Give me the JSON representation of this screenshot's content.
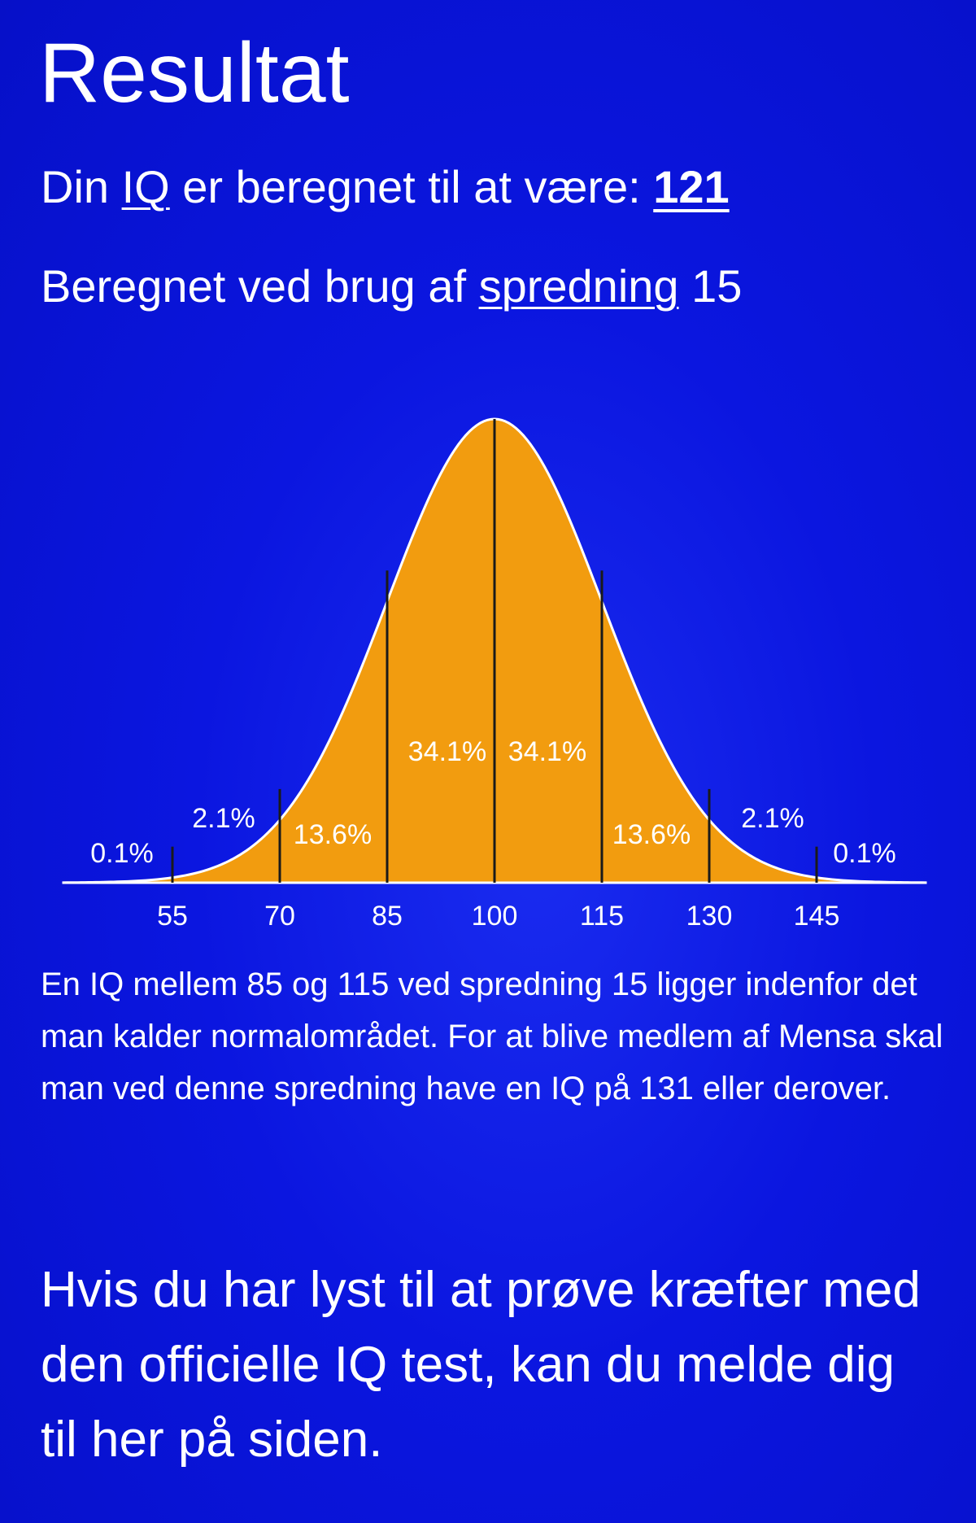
{
  "header": {
    "title": "Resultat"
  },
  "result": {
    "prefix": "Din",
    "iq_link": "IQ",
    "middle": "er beregnet til at være:",
    "score": "121"
  },
  "spread": {
    "prefix": "Beregnet ved brug af",
    "link": "spredning",
    "value": "15"
  },
  "colors": {
    "background": "#0b16e0",
    "curve_fill": "#f29c0f",
    "curve_outline": "#ffffff",
    "divider_lines": "#1a1a1a",
    "label_text": "#ffffff"
  },
  "chart_data": {
    "type": "area",
    "title": "",
    "xlabel": "",
    "ylabel": "",
    "mean": 100,
    "sd": 15,
    "x_ticks": [
      "55",
      "70",
      "85",
      "100",
      "115",
      "130",
      "145"
    ],
    "x_tick_values": [
      55,
      70,
      85,
      100,
      115,
      130,
      145
    ],
    "xlim": [
      40,
      160
    ],
    "dividers": [
      55,
      70,
      85,
      100,
      115,
      130,
      145
    ],
    "region_labels": [
      {
        "label": "0.1%",
        "from": 40,
        "to": 55
      },
      {
        "label": "2.1%",
        "from": 55,
        "to": 70
      },
      {
        "label": "13.6%",
        "from": 70,
        "to": 85
      },
      {
        "label": "34.1%",
        "from": 85,
        "to": 100
      },
      {
        "label": "34.1%",
        "from": 100,
        "to": 115
      },
      {
        "label": "13.6%",
        "from": 115,
        "to": 130
      },
      {
        "label": "2.1%",
        "from": 130,
        "to": 145
      },
      {
        "label": "0.1%",
        "from": 145,
        "to": 160
      }
    ],
    "grid": false,
    "legend": "none"
  },
  "description": {
    "text": "En IQ mellem 85 og 115 ved spredning 15 ligger indenfor det man kalder normalområdet. For at blive medlem af Mensa skal man ved denne spredning have en IQ på 131 eller derover."
  },
  "cta": {
    "text": "Hvis du har lyst til at prøve kræfter med den officielle IQ test, kan du melde dig til her på siden."
  }
}
